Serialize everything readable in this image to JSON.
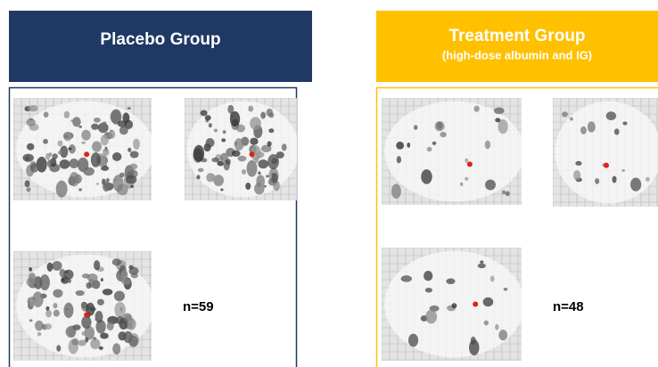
{
  "panels": [
    {
      "title": "Placebo Group",
      "n_label": "n=59"
    },
    {
      "title": "Treatment Group",
      "subtitle": "(high-dose albumin and IG)",
      "n_label": "n=48"
    }
  ]
}
